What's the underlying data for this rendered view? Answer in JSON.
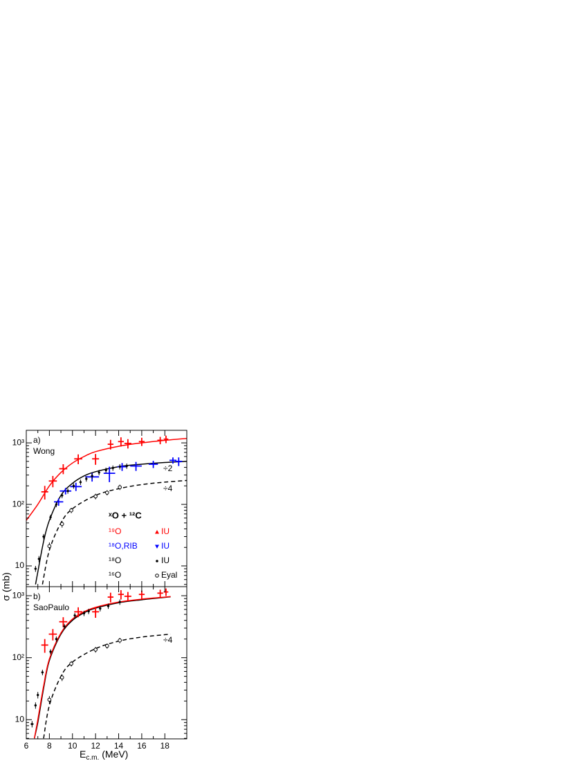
{
  "chart_data": [
    {
      "type": "scatter",
      "panel_label": "a)",
      "model": "Wong",
      "log_y": true,
      "ylabel": "σ (mb)",
      "xlim": [
        6,
        19.9
      ],
      "ylim": [
        4.6,
        1600
      ],
      "yticks": [
        10,
        {
          "value": 100,
          "label": "10²"
        },
        {
          "value": 1000,
          "label": "10³"
        }
      ],
      "annotations": [
        "÷2",
        "÷4"
      ],
      "legend": {
        "title": "ˣO + ¹²C",
        "entries": [
          {
            "label": "¹⁹O",
            "source": "IU",
            "color": "#ff0000",
            "marker": "triangle-up"
          },
          {
            "label": "¹⁸O,RIB",
            "source": "IU",
            "color": "#0000ff",
            "marker": "triangle-down"
          },
          {
            "label": "¹⁸O",
            "source": "IU",
            "color": "#000000",
            "marker": "dot"
          },
          {
            "label": "¹⁶O",
            "source": "Eyal",
            "color": "#000000",
            "marker": "open-circle"
          }
        ]
      },
      "series": [
        {
          "style": "curve",
          "color": "#ff0000",
          "dashed": false,
          "x": [
            6,
            7,
            8,
            9,
            10,
            11,
            12,
            14,
            16,
            18,
            19.9
          ],
          "values": [
            55,
            100,
            200,
            330,
            470,
            600,
            720,
            880,
            1000,
            1100,
            1180
          ]
        },
        {
          "style": "curve",
          "color": "#000000",
          "dashed": false,
          "x": [
            6.8,
            7,
            7.5,
            8,
            9,
            10,
            11,
            12,
            14,
            16,
            18,
            19.9
          ],
          "values": [
            5,
            8,
            25,
            55,
            140,
            220,
            290,
            340,
            410,
            450,
            480,
            500
          ]
        },
        {
          "style": "curve",
          "color": "#000000",
          "dashed": true,
          "x": [
            7.4,
            8,
            9,
            10,
            12,
            14,
            16,
            18,
            19.9
          ],
          "values": [
            5,
            18,
            50,
            85,
            140,
            180,
            210,
            230,
            245
          ]
        },
        {
          "style": "points",
          "marker": "none",
          "color": "#ff0000",
          "x": [
            7.6,
            8.3,
            9.2,
            10.5,
            12.0,
            13.3,
            14.2,
            14.8,
            16.0,
            17.6,
            18.1
          ],
          "values": [
            160,
            240,
            380,
            550,
            550,
            950,
            1050,
            980,
            1050,
            1100,
            1150
          ],
          "xerr": [
            0.3,
            0.35,
            0.35,
            0.35,
            0.3,
            0.25,
            0.25,
            0.3,
            0.25,
            0.25,
            0.2
          ],
          "yerr": [
            40,
            50,
            70,
            100,
            110,
            170,
            180,
            170,
            160,
            150,
            160
          ]
        },
        {
          "style": "points",
          "marker": "none",
          "color": "#0000ff",
          "x": [
            8.8,
            9.4,
            10.3,
            11.7,
            13.2,
            14.3,
            15.5,
            17.0,
            18.7,
            19.2
          ],
          "values": [
            110,
            165,
            195,
            280,
            320,
            410,
            420,
            450,
            520,
            500
          ],
          "xerr": [
            0.4,
            0.5,
            0.5,
            0.6,
            0.5,
            0.4,
            0.5,
            0.4,
            0.3,
            0.3
          ],
          "yerr": [
            15,
            20,
            30,
            45,
            90,
            60,
            70,
            60,
            60,
            80
          ]
        },
        {
          "style": "points",
          "marker": "dot",
          "color": "#000000",
          "x": [
            6.8,
            7.1,
            7.5,
            8.1,
            8.6,
            9.1,
            9.6,
            10.1,
            10.7,
            11.2,
            11.7,
            12.3,
            12.9,
            13.5,
            14.1,
            14.7
          ],
          "values": [
            9,
            13,
            30,
            62,
            100,
            140,
            165,
            200,
            230,
            260,
            290,
            330,
            360,
            390,
            410,
            420
          ],
          "xerr": [
            0.1,
            0.1,
            0.1,
            0.1,
            0.1,
            0.1,
            0.1,
            0.1,
            0.1,
            0.1,
            0.1,
            0.1,
            0.1,
            0.1,
            0.1,
            0.1
          ],
          "yerr": [
            1,
            1.5,
            3,
            6,
            10,
            14,
            16,
            20,
            23,
            26,
            29,
            33,
            36,
            39,
            41,
            42
          ]
        },
        {
          "style": "points",
          "marker": "open-circle",
          "color": "#000000",
          "x": [
            8.0,
            9.1,
            9.9,
            12.0,
            13.0,
            14.1
          ],
          "values": [
            21,
            48,
            80,
            135,
            155,
            190
          ],
          "yerr": [
            3,
            6,
            8,
            14,
            15,
            19
          ]
        }
      ]
    },
    {
      "type": "scatter",
      "panel_label": "b)",
      "model": "SaoPaulo",
      "log_y": true,
      "xlabel": "E",
      "xlabel_sub": "c.m.",
      "xlabel_unit": "(MeV)",
      "xlim": [
        6,
        19.9
      ],
      "xticks": [
        6,
        8,
        10,
        12,
        14,
        16,
        18
      ],
      "ylim": [
        4.9,
        1400
      ],
      "yticks": [
        10,
        {
          "value": 100,
          "label": "10²"
        },
        {
          "value": 1000,
          "label": "10³"
        }
      ],
      "annotations": [
        "÷4"
      ],
      "series": [
        {
          "style": "curve",
          "color": "#000000",
          "dashed": false,
          "x": [
            6.7,
            7,
            7.5,
            8,
            9,
            10,
            11,
            12,
            14,
            16,
            18,
            18.5
          ],
          "values": [
            5,
            9,
            32,
            90,
            240,
            400,
            530,
            630,
            770,
            860,
            940,
            960
          ]
        },
        {
          "style": "curve",
          "color": "#ff0000",
          "dashed": false,
          "x": [
            6.7,
            7,
            7.5,
            8,
            9,
            10,
            11,
            12,
            14,
            16,
            18,
            18.5
          ],
          "values": [
            5,
            10,
            35,
            95,
            250,
            420,
            550,
            650,
            790,
            880,
            950,
            970
          ]
        },
        {
          "style": "curve",
          "color": "#000000",
          "dashed": true,
          "x": [
            7.5,
            8,
            9,
            10,
            12,
            14,
            16,
            18,
            18.5
          ],
          "values": [
            5,
            17,
            50,
            85,
            140,
            185,
            215,
            235,
            240
          ]
        },
        {
          "style": "points",
          "marker": "none",
          "color": "#ff0000",
          "x": [
            7.6,
            8.3,
            9.2,
            10.5,
            12.0,
            13.3,
            14.2,
            14.8,
            16.0,
            17.6,
            18.1
          ],
          "values": [
            160,
            240,
            380,
            550,
            550,
            950,
            1050,
            980,
            1050,
            1100,
            1150
          ],
          "xerr": [
            0.3,
            0.35,
            0.35,
            0.35,
            0.3,
            0.25,
            0.25,
            0.3,
            0.25,
            0.25,
            0.2
          ],
          "yerr": [
            40,
            50,
            70,
            100,
            110,
            170,
            180,
            170,
            160,
            150,
            160
          ]
        },
        {
          "style": "points",
          "marker": "dot",
          "color": "#000000",
          "x": [
            6.5,
            6.8,
            7.0,
            7.4,
            8.1,
            8.6,
            9.3,
            10.2,
            11.0,
            11.4,
            12.4,
            13.1,
            14.1
          ],
          "values": [
            8.5,
            17,
            25,
            58,
            125,
            200,
            320,
            480,
            520,
            560,
            620,
            680,
            790
          ],
          "xerr": [
            0.15,
            0.1,
            0.1,
            0.1,
            0.1,
            0.1,
            0.1,
            0.1,
            0.1,
            0.1,
            0.1,
            0.1,
            0.1
          ],
          "yerr": [
            1,
            2,
            3,
            6,
            12,
            20,
            32,
            48,
            52,
            56,
            62,
            68,
            79
          ]
        },
        {
          "style": "points",
          "marker": "open-circle",
          "color": "#000000",
          "x": [
            8.0,
            9.1,
            9.9,
            12.0,
            13.0,
            14.1
          ],
          "values": [
            21,
            48,
            80,
            135,
            155,
            190
          ],
          "yerr": [
            3,
            6,
            8,
            14,
            15,
            19
          ]
        }
      ]
    }
  ]
}
